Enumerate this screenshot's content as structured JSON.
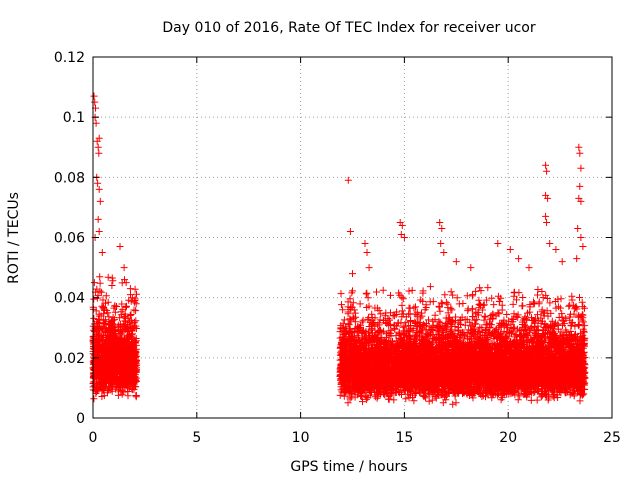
{
  "chart_data": {
    "type": "scatter",
    "title": "Day 010 of 2016, Rate Of TEC Index for receiver ucor",
    "xlabel": "GPS time / hours",
    "ylabel": "ROTI / TECUs",
    "xlim": [
      0,
      25
    ],
    "ylim": [
      0,
      0.12
    ],
    "x_ticks": [
      0,
      5,
      10,
      15,
      20,
      25
    ],
    "y_ticks": [
      0,
      0.02,
      0.04,
      0.06,
      0.08,
      0.1,
      0.12
    ],
    "x_tick_labels": [
      "0",
      "5",
      "10",
      "15",
      "20",
      "25"
    ],
    "y_tick_labels": [
      "0",
      "0.02",
      "0.04",
      "0.06",
      "0.08",
      "0.1",
      "0.12"
    ],
    "grid": true,
    "marker": "+",
    "series_color": "#ff0000",
    "series": [
      {
        "name": "ROTI",
        "segments": [
          {
            "start": 0.0,
            "end": 2.1,
            "median": 0.019,
            "min": 0.006,
            "p95": 0.04
          },
          {
            "start": 11.9,
            "end": 23.7,
            "median": 0.017,
            "min": 0.004,
            "p95": 0.035
          }
        ],
        "points": [
          [
            0.05,
            0.107
          ],
          [
            0.08,
            0.105
          ],
          [
            0.12,
            0.103
          ],
          [
            0.1,
            0.1
          ],
          [
            0.15,
            0.098
          ],
          [
            0.2,
            0.092
          ],
          [
            0.25,
            0.09
          ],
          [
            0.3,
            0.093
          ],
          [
            0.28,
            0.088
          ],
          [
            0.18,
            0.08
          ],
          [
            0.22,
            0.078
          ],
          [
            0.3,
            0.076
          ],
          [
            0.35,
            0.072
          ],
          [
            0.25,
            0.066
          ],
          [
            0.1,
            0.06
          ],
          [
            0.3,
            0.062
          ],
          [
            0.45,
            0.055
          ],
          [
            1.3,
            0.057
          ],
          [
            1.5,
            0.05
          ],
          [
            1.6,
            0.045
          ],
          [
            1.8,
            0.043
          ],
          [
            1.9,
            0.04
          ],
          [
            12.3,
            0.079
          ],
          [
            12.4,
            0.062
          ],
          [
            12.5,
            0.048
          ],
          [
            13.1,
            0.058
          ],
          [
            13.2,
            0.055
          ],
          [
            13.3,
            0.05
          ],
          [
            14.8,
            0.065
          ],
          [
            14.9,
            0.064
          ],
          [
            14.85,
            0.061
          ],
          [
            15.0,
            0.06
          ],
          [
            16.7,
            0.065
          ],
          [
            16.8,
            0.063
          ],
          [
            16.75,
            0.058
          ],
          [
            16.9,
            0.055
          ],
          [
            17.5,
            0.052
          ],
          [
            18.2,
            0.05
          ],
          [
            19.5,
            0.058
          ],
          [
            20.1,
            0.056
          ],
          [
            20.5,
            0.053
          ],
          [
            21.0,
            0.05
          ],
          [
            21.8,
            0.084
          ],
          [
            21.85,
            0.082
          ],
          [
            21.8,
            0.074
          ],
          [
            21.9,
            0.073
          ],
          [
            21.8,
            0.067
          ],
          [
            21.85,
            0.065
          ],
          [
            22.0,
            0.058
          ],
          [
            22.3,
            0.056
          ],
          [
            22.6,
            0.052
          ],
          [
            23.4,
            0.09
          ],
          [
            23.45,
            0.088
          ],
          [
            23.5,
            0.083
          ],
          [
            23.45,
            0.077
          ],
          [
            23.4,
            0.073
          ],
          [
            23.5,
            0.072
          ],
          [
            23.35,
            0.063
          ],
          [
            23.5,
            0.06
          ],
          [
            23.6,
            0.057
          ],
          [
            23.3,
            0.053
          ]
        ]
      }
    ]
  }
}
